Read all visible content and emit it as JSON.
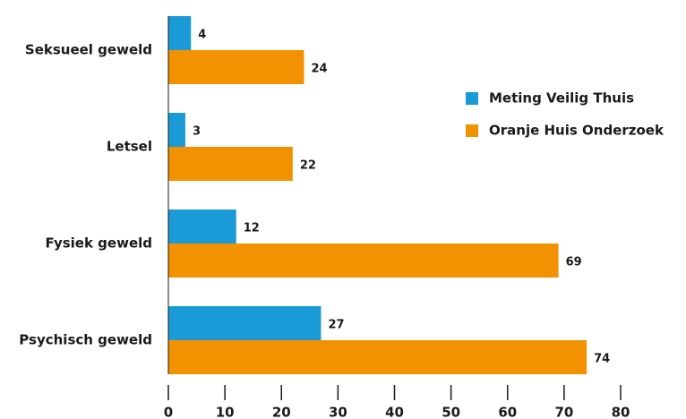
{
  "chart_data": {
    "type": "hbar",
    "categories": [
      "Seksueel geweld",
      "Letsel",
      "Fysiek geweld",
      "Psychisch geweld"
    ],
    "series": [
      {
        "name": "Meting Veilig Thuis",
        "color": "#1a9ad6",
        "values": [
          4,
          3,
          12,
          27
        ]
      },
      {
        "name": "Oranje Huis Onderzoek",
        "color": "#f39200",
        "values": [
          24,
          22,
          69,
          74
        ]
      }
    ],
    "xlim": [
      0,
      80
    ],
    "xticks": [
      0,
      10,
      20,
      30,
      40,
      50,
      60,
      70,
      80
    ],
    "legend": "right"
  }
}
